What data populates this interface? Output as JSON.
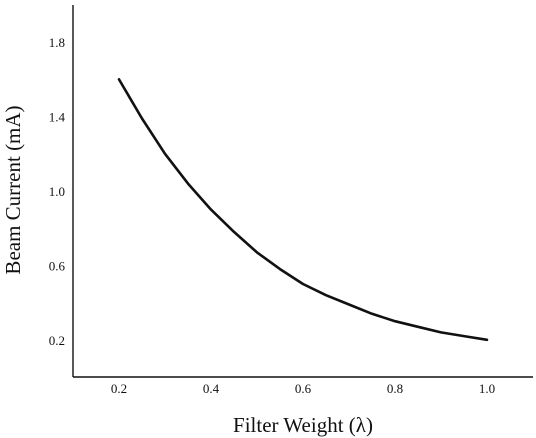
{
  "chart_data": {
    "type": "line",
    "title": "",
    "xlabel": "Filter Weight (λ)",
    "ylabel": "Beam Current (mA)",
    "xlim": [
      0.1,
      1.1
    ],
    "ylim": [
      0.0,
      2.0
    ],
    "x_ticks": [
      0.2,
      0.4,
      0.6,
      0.8,
      1.0
    ],
    "y_ticks": [
      0.2,
      0.6,
      1.0,
      1.4,
      1.8
    ],
    "x_tick_labels": [
      "0.2",
      "0.4",
      "0.6",
      "0.8",
      "1.0"
    ],
    "y_tick_labels": [
      "0.2",
      "0.6",
      "1.0",
      "1.4",
      "1.8"
    ],
    "grid": false,
    "legend": "none",
    "line_color": "#111111",
    "series": [
      {
        "x": [
          0.2,
          0.25,
          0.3,
          0.35,
          0.4,
          0.45,
          0.5,
          0.55,
          0.6,
          0.65,
          0.7,
          0.75,
          0.8,
          0.85,
          0.9,
          0.95,
          1.0
        ],
        "values": [
          1.6,
          1.39,
          1.2,
          1.04,
          0.9,
          0.78,
          0.67,
          0.58,
          0.5,
          0.44,
          0.39,
          0.34,
          0.3,
          0.27,
          0.24,
          0.22,
          0.2
        ]
      }
    ]
  }
}
